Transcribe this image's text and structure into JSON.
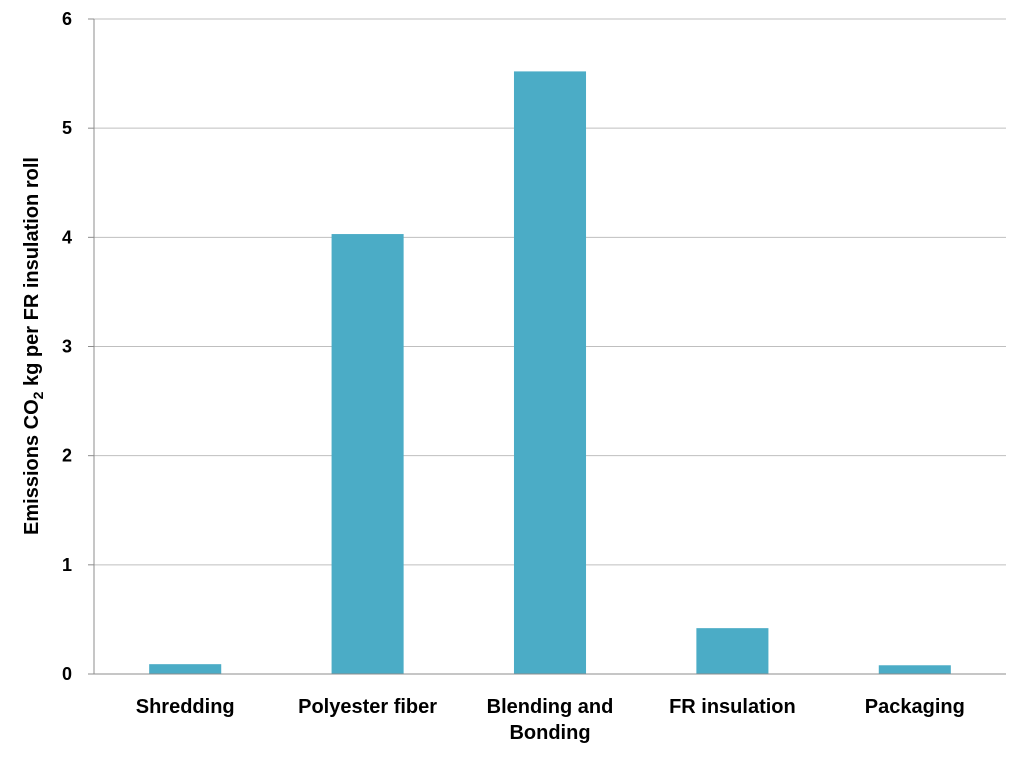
{
  "chart_data": {
    "type": "bar",
    "title": "",
    "xlabel": "",
    "ylabel_parts": [
      "Emissions CO",
      "2",
      " kg per FR insulation roll"
    ],
    "categories": [
      [
        "Shredding"
      ],
      [
        "Polyester fiber"
      ],
      [
        "Blending and",
        "Bonding"
      ],
      [
        "FR insulation"
      ],
      [
        "Packaging"
      ]
    ],
    "values": [
      0.09,
      4.03,
      5.52,
      0.42,
      0.08
    ],
    "ylim": [
      0,
      6
    ],
    "yticks": [
      "0",
      "1",
      "2",
      "3",
      "4",
      "5",
      "6"
    ],
    "grid": true,
    "legend": "none",
    "bar_color": "#4bacc6",
    "grid_color": "#bfbfbf",
    "axis_color": "#8c8c8c"
  }
}
